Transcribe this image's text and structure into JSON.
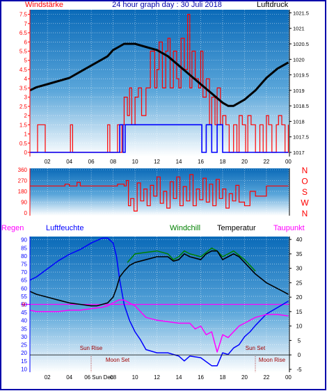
{
  "colors": {
    "frame_border": "#0000aa",
    "panel_top": "#0a6ab8",
    "panel_bottom": "#ffffff",
    "red": "#ff0000",
    "blue": "#0000ff",
    "black": "#000000",
    "green": "#008000",
    "magenta": "#ff00ff",
    "dark_red": "#a00000",
    "grid": "#ffffff"
  },
  "chart_data": [
    {
      "id": "wind-pressure",
      "type": "line",
      "title": "24 hour graph day : 30 Juli 2018",
      "left_label": "Windstärke",
      "right_label": "Luftdruck",
      "x_ticks": [
        "02",
        "04",
        "06",
        "08",
        "10",
        "12",
        "14",
        "16",
        "18",
        "20",
        "22",
        "00"
      ],
      "y_left_ticks": [
        "0",
        "0.5",
        "1",
        "1.5",
        "2",
        "2.5",
        "3",
        "3.5",
        "4",
        "4.5",
        "5",
        "5.5",
        "6",
        "6.5",
        "7",
        "7.5"
      ],
      "y_right_ticks": [
        "1017",
        "1017.5",
        "1018",
        "1018.5",
        "1019",
        "1019.5",
        "1020",
        "1020.5",
        "1021",
        "1021.5"
      ],
      "ylim_left": [
        0,
        7.75
      ],
      "ylim_right": [
        1017,
        1021.6
      ],
      "xlim": [
        0.4,
        24.1
      ],
      "series": [
        {
          "axis": "right",
          "x": [
            0.4,
            1,
            2,
            3,
            4,
            5,
            6,
            7,
            7.5,
            8,
            8.5,
            9,
            9.5,
            10,
            11,
            12,
            13,
            14,
            15,
            16,
            17,
            18,
            18.5,
            19,
            20,
            21,
            22,
            23,
            24
          ],
          "y": [
            1019,
            1019.1,
            1019.2,
            1019.3,
            1019.4,
            1019.6,
            1019.8,
            1020,
            1020.1,
            1020.3,
            1020.4,
            1020.5,
            1020.5,
            1020.5,
            1020.4,
            1020.3,
            1020.1,
            1019.8,
            1019.5,
            1019.2,
            1018.9,
            1018.6,
            1018.5,
            1018.5,
            1018.7,
            1019,
            1019.4,
            1019.7,
            1019.9
          ]
        },
        {
          "axis": "left",
          "x": [
            0.4,
            0.9,
            1.1,
            1.6,
            1.8,
            2.4,
            4,
            4.1,
            4.3,
            7.3,
            7.5,
            7.7,
            8.3,
            8.4,
            8.6,
            8.8,
            9,
            9.3,
            9.5,
            9.7,
            10,
            10.3,
            10.6,
            11,
            11.4,
            11.8,
            12,
            12.2,
            12.5,
            12.8,
            13,
            13.2,
            13.5,
            13.8,
            14,
            14.2,
            14.5,
            14.8,
            15,
            15.2,
            15.5,
            15.8,
            16,
            16.2,
            16.5,
            16.8,
            17,
            17.3,
            17.5,
            17.8,
            18,
            18.3,
            18.6,
            19,
            19.3,
            19.5,
            19.8,
            20.1,
            20.3,
            20.6,
            21,
            21.4,
            21.7,
            22,
            22.2,
            22.5,
            22.9,
            23.1,
            23.4,
            23.7,
            24
          ],
          "y": [
            0,
            0,
            1.5,
            1.5,
            0,
            0,
            0,
            1.5,
            0,
            0,
            1.5,
            0,
            0,
            1.5,
            0,
            1.5,
            3,
            2,
            3.5,
            1.5,
            3,
            3.5,
            2,
            3.5,
            5.5,
            3.5,
            4.5,
            6,
            3.5,
            5.5,
            6.2,
            3.5,
            5.5,
            4,
            3.5,
            6.2,
            4.5,
            7.5,
            3.5,
            5.5,
            4,
            3.5,
            5.5,
            3,
            4,
            1.5,
            3,
            1.5,
            3.5,
            1.5,
            2,
            1.5,
            0,
            1.5,
            0,
            2,
            1.5,
            0,
            2,
            1.5,
            0,
            1.5,
            0,
            2,
            1.5,
            0,
            1.5,
            2,
            1.5,
            0,
            1.5
          ]
        },
        {
          "axis": "left",
          "x": [
            0.4,
            8.4,
            8.6,
            8.9,
            9.1,
            9.5,
            10,
            10.5,
            11,
            11.5,
            12,
            12.5,
            13,
            13.5,
            14,
            14.5,
            15,
            15.5,
            15.9,
            16.1,
            16.5,
            17,
            17.5,
            18,
            18.3,
            19,
            24
          ],
          "y": [
            0,
            0,
            1.5,
            0,
            1.5,
            1.5,
            1.5,
            1.5,
            1.5,
            1.5,
            1.5,
            1.5,
            1.5,
            1.5,
            1.5,
            1.5,
            1.5,
            1.5,
            1.5,
            0,
            1.5,
            0,
            1.5,
            0,
            0,
            0,
            0
          ]
        }
      ]
    },
    {
      "id": "wind-direction",
      "type": "line",
      "right_labels": [
        "N",
        "W",
        "S",
        "O",
        "N"
      ],
      "y_left_ticks": [
        "0",
        "90",
        "180",
        "270",
        "360"
      ],
      "ylim": [
        0,
        360
      ],
      "xlim": [
        0.4,
        24.1
      ],
      "series": [
        {
          "x": [
            0.4,
            3.5,
            3.6,
            4,
            4.5,
            4.7,
            5,
            8.2,
            8.4,
            9,
            9.2,
            9.4,
            9.6,
            9.9,
            10.2,
            10.5,
            10.8,
            11.1,
            11.4,
            11.7,
            12,
            12.3,
            12.6,
            12.9,
            13.2,
            13.5,
            13.8,
            14.1,
            14.4,
            14.7,
            15,
            15.3,
            15.6,
            15.9,
            16.2,
            16.5,
            16.8,
            17.1,
            17.4,
            17.7,
            18,
            18.3,
            18.6,
            18.9,
            19.2,
            19.5,
            20,
            20.5,
            21,
            22,
            23,
            24
          ],
          "y": [
            225,
            225,
            240,
            225,
            225,
            255,
            225,
            225,
            240,
            225,
            270,
            60,
            120,
            15,
            250,
            100,
            200,
            60,
            230,
            140,
            300,
            80,
            180,
            40,
            260,
            120,
            300,
            60,
            220,
            100,
            320,
            60,
            200,
            110,
            290,
            90,
            240,
            60,
            280,
            120,
            200,
            40,
            160,
            100,
            230,
            90,
            60,
            180,
            140,
            225,
            225,
            225
          ]
        }
      ]
    },
    {
      "id": "temperature-humidity",
      "type": "line",
      "labels": {
        "rain": "Regen",
        "humidity": "Luftfeuchte",
        "windchill": "Windchill",
        "temperature": "Temperatur",
        "dewpoint": "Taupunkt"
      },
      "y_left_ticks": [
        "10",
        "15",
        "20",
        "25",
        "30",
        "35",
        "40",
        "45",
        "50",
        "55",
        "60",
        "65",
        "70",
        "75",
        "80",
        "85",
        "90"
      ],
      "y_right_ticks": [
        "-5",
        "0",
        "5",
        "10",
        "15",
        "20",
        "25",
        "30",
        "35",
        "40"
      ],
      "rain_value_label": "0",
      "ylim_left": [
        8,
        92
      ],
      "ylim_right": [
        -6,
        41
      ],
      "xlim": [
        0.4,
        24.1
      ],
      "annotations": {
        "sun_rise": "Sun Rise",
        "sun_set": "Sun Set",
        "moon_set": "Moon Set",
        "moon_rise": "Moon Rise",
        "sun_dec": "Sun Dec"
      },
      "series": [
        {
          "name": "Luftfeuchte",
          "axis": "left",
          "x": [
            0.4,
            1,
            2,
            3,
            4,
            5,
            6,
            7,
            7.5,
            8,
            8.3,
            8.6,
            9,
            9.5,
            10,
            10.5,
            11,
            12,
            13,
            14,
            14.5,
            15,
            16,
            17,
            17.5,
            18,
            18.5,
            19,
            19.5,
            20,
            20.5,
            21,
            22,
            23,
            24
          ],
          "y": [
            65,
            67,
            72,
            77,
            81,
            84,
            88,
            91,
            91,
            88,
            80,
            65,
            50,
            40,
            33,
            28,
            22,
            20,
            20,
            18,
            15,
            18,
            17,
            12,
            12,
            20,
            19,
            23,
            25,
            30,
            33,
            37,
            44,
            48,
            52
          ]
        },
        {
          "name": "Temperatur",
          "axis": "right",
          "x": [
            0.4,
            1,
            2,
            3,
            4,
            5,
            6,
            6.5,
            7,
            7.5,
            8,
            8.3,
            8.6,
            9,
            9.5,
            10,
            11,
            12,
            13,
            13.5,
            14,
            14.5,
            15,
            16,
            16.5,
            17,
            17.5,
            18,
            18.5,
            19,
            19.5,
            20,
            21,
            22,
            23,
            23.5,
            24
          ],
          "y": [
            22,
            21,
            20,
            19,
            18,
            17.5,
            17,
            17,
            17.5,
            18,
            20,
            23,
            27,
            29,
            31,
            32,
            33,
            34,
            34,
            32.5,
            33,
            35,
            34,
            33,
            35,
            36,
            36,
            33,
            34,
            35,
            34,
            32,
            28,
            25,
            23,
            22,
            21
          ]
        },
        {
          "name": "Windchill",
          "axis": "right",
          "x": [
            9.3,
            10,
            11,
            12,
            13,
            13.5,
            14,
            14.5,
            15,
            16,
            16.5,
            17,
            17.5,
            18,
            18.5,
            19,
            19.5,
            20,
            21
          ],
          "y": [
            32,
            35,
            35.5,
            36,
            35,
            33,
            34,
            36,
            35,
            34,
            35.5,
            37,
            36,
            34,
            35,
            36,
            34.5,
            33,
            29
          ]
        },
        {
          "name": "Taupunkt",
          "axis": "right",
          "x": [
            0.4,
            1,
            2,
            3,
            4,
            5,
            6,
            7,
            7.5,
            8,
            8.5,
            9,
            9.5,
            10,
            10.5,
            11,
            12,
            13,
            14,
            15,
            15.5,
            16,
            16.5,
            17,
            17.5,
            18,
            18.5,
            19,
            19.5,
            20,
            20.5,
            21,
            22,
            23,
            24
          ],
          "y": [
            15.5,
            15,
            15,
            15,
            15.5,
            15.5,
            16,
            16.5,
            17,
            18,
            19,
            19,
            18,
            17,
            15,
            13,
            12,
            11.5,
            11,
            11,
            9,
            10,
            7,
            8,
            1,
            7,
            6,
            8,
            10,
            11,
            12,
            13,
            14,
            14,
            13.5
          ]
        },
        {
          "name": "Regen",
          "axis": "left",
          "x": [
            0.4,
            24
          ],
          "y": [
            50,
            50
          ]
        }
      ]
    }
  ]
}
